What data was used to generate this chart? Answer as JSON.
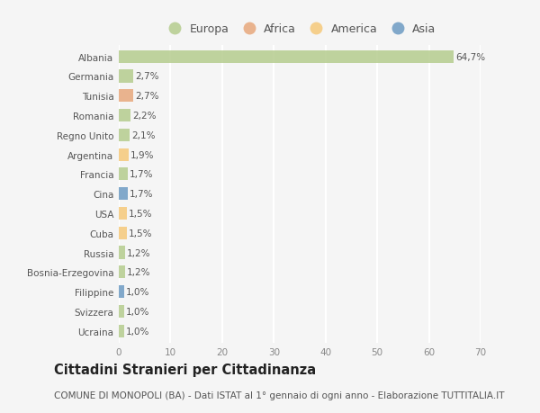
{
  "countries": [
    "Albania",
    "Germania",
    "Tunisia",
    "Romania",
    "Regno Unito",
    "Argentina",
    "Francia",
    "Cina",
    "USA",
    "Cuba",
    "Russia",
    "Bosnia-Erzegovina",
    "Filippine",
    "Svizzera",
    "Ucraina"
  ],
  "values": [
    64.7,
    2.7,
    2.7,
    2.2,
    2.1,
    1.9,
    1.7,
    1.7,
    1.5,
    1.5,
    1.2,
    1.2,
    1.0,
    1.0,
    1.0
  ],
  "labels": [
    "64,7%",
    "2,7%",
    "2,7%",
    "2,2%",
    "2,1%",
    "1,9%",
    "1,7%",
    "1,7%",
    "1,5%",
    "1,5%",
    "1,2%",
    "1,2%",
    "1,0%",
    "1,0%",
    "1,0%"
  ],
  "continents": [
    "Europa",
    "Europa",
    "Africa",
    "Europa",
    "Europa",
    "America",
    "Europa",
    "Asia",
    "America",
    "America",
    "Europa",
    "Europa",
    "Asia",
    "Europa",
    "Europa"
  ],
  "continent_colors": {
    "Europa": "#b5cc8e",
    "Africa": "#e8a87c",
    "America": "#f5c97a",
    "Asia": "#6d9bc3"
  },
  "legend_order": [
    "Europa",
    "Africa",
    "America",
    "Asia"
  ],
  "title": "Cittadini Stranieri per Cittadinanza",
  "subtitle": "COMUNE DI MONOPOLI (BA) - Dati ISTAT al 1° gennaio di ogni anno - Elaborazione TUTTITALIA.IT",
  "xlim": [
    0,
    70
  ],
  "xticks": [
    0,
    10,
    20,
    30,
    40,
    50,
    60,
    70
  ],
  "background_color": "#f5f5f5",
  "grid_color": "#ffffff",
  "bar_height": 0.65,
  "title_fontsize": 10.5,
  "subtitle_fontsize": 7.5,
  "label_fontsize": 7.5,
  "tick_fontsize": 7.5,
  "legend_fontsize": 9
}
